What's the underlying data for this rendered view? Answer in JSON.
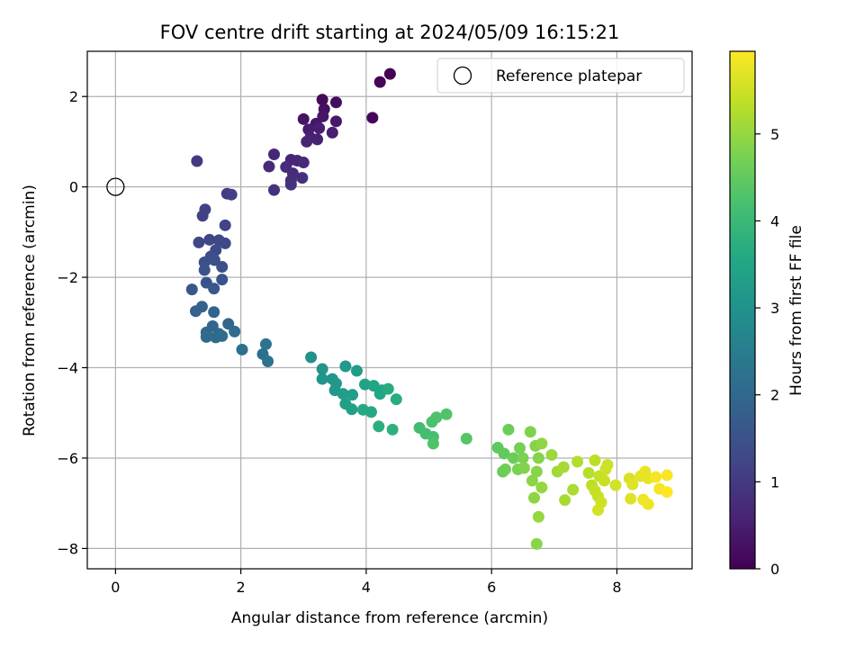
{
  "chart_data": {
    "type": "scatter",
    "title": "FOV centre drift starting at 2024/05/09 16:15:21",
    "xlabel": "Angular distance from reference (arcmin)",
    "ylabel": "Rotation from reference (arcmin)",
    "xlim": [
      -0.45,
      9.2
    ],
    "ylim": [
      -8.45,
      3.0
    ],
    "xticks": [
      0,
      2,
      4,
      6,
      8
    ],
    "yticks": [
      -8,
      -6,
      -4,
      -2,
      0,
      2
    ],
    "grid": true,
    "legend": {
      "position": "top-right",
      "entries": [
        "Reference platepar"
      ]
    },
    "reference_point": {
      "x": 0,
      "y": 0,
      "label": "Reference platepar"
    },
    "colorbar": {
      "label": "Hours from first FF file",
      "colormap": "viridis",
      "range": [
        0,
        5.95
      ],
      "ticks": [
        0,
        1,
        2,
        3,
        4,
        5
      ]
    },
    "points": [
      [
        4.38,
        2.5,
        0.0
      ],
      [
        4.22,
        2.32,
        0.05
      ],
      [
        4.1,
        1.53,
        0.1
      ],
      [
        3.3,
        1.93,
        0.15
      ],
      [
        3.52,
        1.87,
        0.2
      ],
      [
        3.33,
        1.72,
        0.25
      ],
      [
        3.0,
        1.5,
        0.3
      ],
      [
        3.2,
        1.4,
        0.35
      ],
      [
        3.31,
        1.56,
        0.35
      ],
      [
        3.52,
        1.45,
        0.4
      ],
      [
        3.08,
        1.27,
        0.45
      ],
      [
        3.25,
        1.3,
        0.5
      ],
      [
        3.46,
        1.2,
        0.5
      ],
      [
        3.11,
        1.09,
        0.55
      ],
      [
        3.22,
        1.05,
        0.55
      ],
      [
        3.05,
        1.0,
        0.6
      ],
      [
        2.8,
        0.6,
        0.6
      ],
      [
        2.9,
        0.58,
        0.65
      ],
      [
        2.53,
        0.72,
        0.65
      ],
      [
        3.0,
        0.54,
        0.7
      ],
      [
        2.45,
        0.45,
        0.7
      ],
      [
        2.72,
        0.44,
        0.75
      ],
      [
        2.83,
        0.3,
        0.75
      ],
      [
        2.98,
        0.2,
        0.8
      ],
      [
        2.8,
        0.14,
        0.8
      ],
      [
        2.8,
        0.05,
        0.85
      ],
      [
        2.53,
        -0.07,
        0.85
      ],
      [
        1.3,
        0.57,
        1.0
      ],
      [
        1.78,
        -0.15,
        1.05
      ],
      [
        1.85,
        -0.17,
        1.1
      ],
      [
        1.43,
        -0.5,
        1.15
      ],
      [
        1.39,
        -0.64,
        1.15
      ],
      [
        1.75,
        -0.85,
        1.2
      ],
      [
        1.5,
        -1.17,
        1.25
      ],
      [
        1.33,
        -1.23,
        1.25
      ],
      [
        1.65,
        -1.18,
        1.3
      ],
      [
        1.75,
        -1.25,
        1.3
      ],
      [
        1.6,
        -1.4,
        1.35
      ],
      [
        1.52,
        -1.54,
        1.4
      ],
      [
        1.42,
        -1.67,
        1.4
      ],
      [
        1.58,
        -1.62,
        1.45
      ],
      [
        1.7,
        -1.77,
        1.45
      ],
      [
        1.42,
        -1.84,
        1.5
      ],
      [
        1.7,
        -2.05,
        1.55
      ],
      [
        1.45,
        -2.12,
        1.55
      ],
      [
        1.57,
        -2.25,
        1.6
      ],
      [
        1.22,
        -2.27,
        1.6
      ],
      [
        1.38,
        -2.65,
        1.85
      ],
      [
        1.28,
        -2.75,
        1.85
      ],
      [
        1.57,
        -2.77,
        1.9
      ],
      [
        1.55,
        -3.08,
        1.95
      ],
      [
        1.8,
        -3.03,
        1.95
      ],
      [
        1.45,
        -3.22,
        2.0
      ],
      [
        1.65,
        -3.25,
        2.0
      ],
      [
        1.45,
        -3.32,
        2.05
      ],
      [
        1.6,
        -3.33,
        2.05
      ],
      [
        1.7,
        -3.3,
        2.1
      ],
      [
        1.9,
        -3.2,
        2.1
      ],
      [
        2.02,
        -3.6,
        2.15
      ],
      [
        2.35,
        -3.7,
        2.2
      ],
      [
        2.4,
        -3.48,
        2.25
      ],
      [
        2.43,
        -3.86,
        2.25
      ],
      [
        3.12,
        -3.77,
        3.0
      ],
      [
        3.3,
        -4.03,
        3.05
      ],
      [
        3.3,
        -4.25,
        3.05
      ],
      [
        3.46,
        -4.25,
        3.1
      ],
      [
        3.52,
        -4.35,
        3.15
      ],
      [
        3.5,
        -4.5,
        3.15
      ],
      [
        3.67,
        -3.97,
        3.2
      ],
      [
        3.85,
        -4.07,
        3.25
      ],
      [
        3.63,
        -4.58,
        3.3
      ],
      [
        3.78,
        -4.6,
        3.3
      ],
      [
        3.67,
        -4.8,
        3.35
      ],
      [
        3.77,
        -4.92,
        3.4
      ],
      [
        3.98,
        -4.37,
        3.45
      ],
      [
        4.12,
        -4.4,
        3.5
      ],
      [
        4.25,
        -4.5,
        3.55
      ],
      [
        4.22,
        -4.58,
        3.55
      ],
      [
        3.95,
        -4.93,
        3.6
      ],
      [
        4.08,
        -4.98,
        3.6
      ],
      [
        4.35,
        -4.47,
        3.65
      ],
      [
        4.48,
        -4.7,
        3.7
      ],
      [
        4.2,
        -5.3,
        3.75
      ],
      [
        4.42,
        -5.37,
        3.8
      ],
      [
        4.85,
        -5.33,
        4.1
      ],
      [
        4.95,
        -5.46,
        4.15
      ],
      [
        5.07,
        -5.53,
        4.2
      ],
      [
        5.12,
        -5.1,
        4.25
      ],
      [
        5.05,
        -5.2,
        4.25
      ],
      [
        5.28,
        -5.03,
        4.3
      ],
      [
        5.07,
        -5.68,
        4.3
      ],
      [
        5.6,
        -5.57,
        4.35
      ],
      [
        6.1,
        -5.77,
        4.45
      ],
      [
        6.2,
        -5.9,
        4.5
      ],
      [
        6.18,
        -6.3,
        4.55
      ],
      [
        6.27,
        -5.37,
        4.6
      ],
      [
        6.35,
        -6.0,
        4.6
      ],
      [
        6.22,
        -6.25,
        4.65
      ],
      [
        6.45,
        -5.78,
        4.7
      ],
      [
        6.5,
        -6.0,
        4.75
      ],
      [
        6.42,
        -6.25,
        4.75
      ],
      [
        6.52,
        -6.22,
        4.8
      ],
      [
        6.62,
        -5.42,
        4.8
      ],
      [
        6.7,
        -5.73,
        4.85
      ],
      [
        6.75,
        -6.0,
        4.85
      ],
      [
        6.65,
        -6.5,
        4.9
      ],
      [
        6.72,
        -6.3,
        4.9
      ],
      [
        6.8,
        -5.68,
        4.95
      ],
      [
        6.68,
        -6.88,
        4.95
      ],
      [
        6.8,
        -6.65,
        5.0
      ],
      [
        6.75,
        -7.3,
        5.0
      ],
      [
        6.72,
        -7.9,
        4.9
      ],
      [
        6.96,
        -5.93,
        5.05
      ],
      [
        7.05,
        -6.3,
        5.1
      ],
      [
        7.15,
        -6.2,
        5.15
      ],
      [
        7.17,
        -6.93,
        5.15
      ],
      [
        7.3,
        -6.7,
        5.2
      ],
      [
        7.37,
        -6.08,
        5.25
      ],
      [
        7.55,
        -6.33,
        5.3
      ],
      [
        7.6,
        -6.6,
        5.35
      ],
      [
        7.65,
        -6.05,
        5.35
      ],
      [
        7.72,
        -6.4,
        5.4
      ],
      [
        7.65,
        -6.72,
        5.4
      ],
      [
        7.7,
        -6.85,
        5.45
      ],
      [
        7.8,
        -6.5,
        5.45
      ],
      [
        7.85,
        -6.15,
        5.5
      ],
      [
        7.82,
        -6.25,
        5.5
      ],
      [
        7.75,
        -6.98,
        5.5
      ],
      [
        7.7,
        -7.15,
        5.55
      ],
      [
        7.98,
        -6.6,
        5.55
      ],
      [
        8.2,
        -6.45,
        5.6
      ],
      [
        8.25,
        -6.58,
        5.65
      ],
      [
        8.22,
        -6.9,
        5.65
      ],
      [
        8.38,
        -6.4,
        5.7
      ],
      [
        8.45,
        -6.3,
        5.75
      ],
      [
        8.5,
        -6.45,
        5.75
      ],
      [
        8.42,
        -6.92,
        5.8
      ],
      [
        8.5,
        -7.02,
        5.8
      ],
      [
        8.62,
        -6.42,
        5.85
      ],
      [
        8.68,
        -6.68,
        5.85
      ],
      [
        8.8,
        -6.38,
        5.9
      ],
      [
        8.8,
        -6.75,
        5.95
      ]
    ]
  }
}
